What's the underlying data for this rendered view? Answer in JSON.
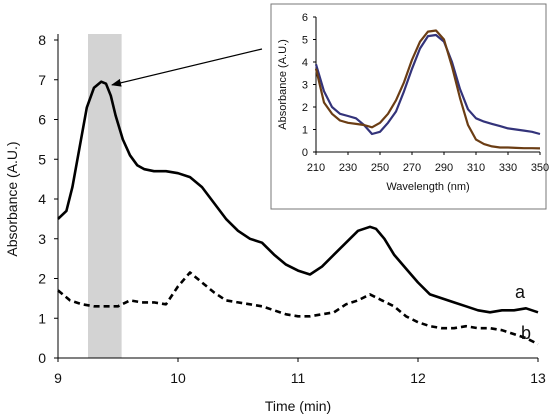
{
  "chart_data": [
    {
      "type": "line",
      "xlabel": "Time (min)",
      "ylabel": "Absorbance (A.U.)",
      "xlim": [
        9,
        13
      ],
      "ylim": [
        0,
        8
      ],
      "xticks": [
        9,
        10,
        11,
        12,
        13
      ],
      "yticks": [
        0,
        1,
        2,
        3,
        4,
        5,
        6,
        7,
        8
      ],
      "grid": false,
      "highlight_band": [
        9.25,
        9.53
      ],
      "series": [
        {
          "name": "a",
          "style": "solid",
          "color": "#000000",
          "x": [
            9.0,
            9.07,
            9.12,
            9.18,
            9.24,
            9.3,
            9.36,
            9.4,
            9.44,
            9.48,
            9.54,
            9.6,
            9.66,
            9.72,
            9.8,
            9.9,
            10.0,
            10.1,
            10.2,
            10.3,
            10.4,
            10.5,
            10.6,
            10.7,
            10.8,
            10.9,
            11.0,
            11.1,
            11.2,
            11.3,
            11.4,
            11.5,
            11.6,
            11.65,
            11.72,
            11.8,
            11.9,
            12.0,
            12.1,
            12.2,
            12.3,
            12.4,
            12.5,
            12.6,
            12.7,
            12.8,
            12.9,
            13.0
          ],
          "y": [
            3.5,
            3.7,
            4.3,
            5.3,
            6.3,
            6.8,
            6.95,
            6.9,
            6.6,
            6.1,
            5.5,
            5.1,
            4.85,
            4.75,
            4.7,
            4.7,
            4.65,
            4.55,
            4.3,
            3.9,
            3.5,
            3.2,
            3.0,
            2.9,
            2.6,
            2.35,
            2.2,
            2.1,
            2.3,
            2.6,
            2.9,
            3.2,
            3.3,
            3.25,
            3.0,
            2.6,
            2.25,
            1.9,
            1.6,
            1.5,
            1.4,
            1.3,
            1.2,
            1.15,
            1.2,
            1.2,
            1.25,
            1.15
          ]
        },
        {
          "name": "b",
          "style": "dashed",
          "color": "#000000",
          "x": [
            9.0,
            9.1,
            9.2,
            9.3,
            9.4,
            9.5,
            9.6,
            9.7,
            9.8,
            9.9,
            10.0,
            10.1,
            10.2,
            10.3,
            10.4,
            10.5,
            10.6,
            10.7,
            10.8,
            10.9,
            11.0,
            11.1,
            11.2,
            11.3,
            11.4,
            11.5,
            11.6,
            11.7,
            11.8,
            11.9,
            12.0,
            12.1,
            12.2,
            12.3,
            12.4,
            12.5,
            12.6,
            12.7,
            12.8,
            12.9,
            13.0
          ],
          "y": [
            1.7,
            1.45,
            1.35,
            1.3,
            1.3,
            1.3,
            1.45,
            1.4,
            1.4,
            1.35,
            1.8,
            2.15,
            1.9,
            1.65,
            1.45,
            1.4,
            1.35,
            1.3,
            1.2,
            1.1,
            1.05,
            1.05,
            1.1,
            1.15,
            1.35,
            1.45,
            1.6,
            1.45,
            1.3,
            1.05,
            0.9,
            0.8,
            0.75,
            0.75,
            0.8,
            0.75,
            0.75,
            0.7,
            0.6,
            0.5,
            0.35
          ]
        }
      ],
      "annotations": [
        "a",
        "b"
      ]
    },
    {
      "type": "line",
      "inset": true,
      "xlabel": "Wavelength (nm)",
      "ylabel": "Absorbance (A.U.)",
      "xlim": [
        210,
        350
      ],
      "ylim": [
        0,
        6
      ],
      "xticks": [
        210,
        230,
        250,
        270,
        290,
        310,
        330,
        350
      ],
      "yticks": [
        0,
        1,
        2,
        3,
        4,
        5,
        6
      ],
      "grid": false,
      "series": [
        {
          "color": "#33337a",
          "x": [
            210,
            215,
            220,
            225,
            230,
            235,
            240,
            245,
            250,
            255,
            260,
            265,
            270,
            275,
            280,
            285,
            290,
            295,
            300,
            305,
            310,
            315,
            320,
            325,
            330,
            335,
            340,
            345,
            350
          ],
          "y": [
            3.9,
            2.7,
            2.0,
            1.7,
            1.6,
            1.5,
            1.2,
            0.8,
            0.9,
            1.3,
            1.8,
            2.7,
            3.7,
            4.6,
            5.15,
            5.2,
            4.9,
            4.0,
            2.8,
            1.9,
            1.5,
            1.35,
            1.25,
            1.15,
            1.05,
            1.0,
            0.95,
            0.9,
            0.8
          ]
        },
        {
          "color": "#6b3d14",
          "x": [
            210,
            215,
            220,
            225,
            230,
            235,
            240,
            245,
            250,
            255,
            260,
            265,
            270,
            275,
            280,
            285,
            290,
            295,
            300,
            305,
            310,
            315,
            320,
            325,
            330,
            335,
            340,
            345,
            350
          ],
          "y": [
            3.7,
            2.2,
            1.7,
            1.4,
            1.3,
            1.25,
            1.2,
            1.1,
            1.3,
            1.7,
            2.3,
            3.1,
            4.1,
            4.9,
            5.35,
            5.4,
            5.0,
            3.8,
            2.4,
            1.2,
            0.55,
            0.35,
            0.25,
            0.2,
            0.2,
            0.18,
            0.17,
            0.17,
            0.16
          ]
        }
      ]
    }
  ]
}
